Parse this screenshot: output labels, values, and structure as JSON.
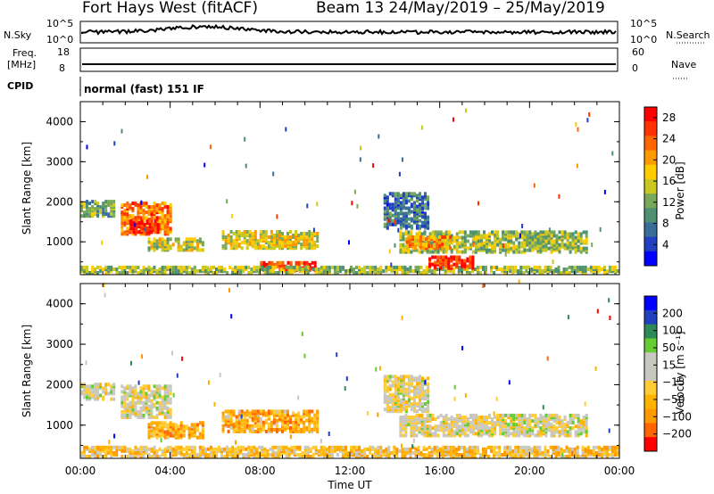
{
  "header": {
    "radar_title": "Fort Hays West (fitACF)",
    "beam_info": "Beam 13 24/May/2019 – 25/May/2019"
  },
  "strip_nsky": {
    "left_label": "N.Sky",
    "right_label": "N.Search",
    "left_ticks": [
      "10^5",
      "10^0"
    ],
    "right_ticks": [
      "10^5",
      "10^0"
    ]
  },
  "strip_freq": {
    "left_label_line1": "Freq.",
    "left_label_line2": "[MHz]",
    "right_label": "Nave",
    "left_ticks": [
      "18",
      "8"
    ],
    "right_ticks": [
      "60",
      "0"
    ]
  },
  "strip_cpid": {
    "label": "CPID",
    "value": "normal (fast) 151 IF"
  },
  "colors": {
    "power": [
      "#0000ff",
      "#2040c0",
      "#3a6e9a",
      "#4f9070",
      "#7aa85a",
      "#c8c820",
      "#ffcc00",
      "#ff9900",
      "#ff6600",
      "#ff3300",
      "#ff0000"
    ],
    "velocity": [
      "#ff0000",
      "#ff6600",
      "#ff9900",
      "#ffb300",
      "#ffcc33",
      "#c8c8c0",
      "#c8c8c0",
      "#66cc33",
      "#2e8b57",
      "#2040c0",
      "#0000ff"
    ]
  },
  "chart_data": [
    {
      "type": "heatmap",
      "name": "power_panel",
      "ylabel": "Slant Range [km]",
      "yticks": [
        "1000",
        "2000",
        "3000",
        "4000"
      ],
      "ylim": [
        180,
        4500
      ],
      "xticks": [
        "00:00",
        "04:00",
        "08:00",
        "12:00",
        "16:00",
        "20:00",
        "00:00"
      ],
      "colorbar": {
        "label": "Power [dB]",
        "ticks": [
          "4",
          "8",
          "12",
          "16",
          "20",
          "24",
          "28"
        ],
        "range": [
          0,
          30
        ]
      },
      "regions": [
        {
          "t0": 0.0,
          "t1": 1.5,
          "r0": 1600,
          "r1": 2000,
          "level": 0.4
        },
        {
          "t0": 1.8,
          "t1": 4.0,
          "r0": 1150,
          "r1": 1950,
          "level": 0.75
        },
        {
          "t0": 2.2,
          "t1": 3.5,
          "r0": 1200,
          "r1": 1500,
          "level": 0.95
        },
        {
          "t0": 3.0,
          "t1": 5.5,
          "r0": 750,
          "r1": 1050,
          "level": 0.5
        },
        {
          "t0": 6.3,
          "t1": 10.5,
          "r0": 800,
          "r1": 1250,
          "level": 0.55
        },
        {
          "t0": 8.0,
          "t1": 10.5,
          "r0": 250,
          "r1": 450,
          "level": 0.9
        },
        {
          "t0": 0.0,
          "t1": 24.0,
          "r0": 180,
          "r1": 350,
          "level": 0.45
        },
        {
          "t0": 14.2,
          "t1": 22.5,
          "r0": 700,
          "r1": 1200,
          "level": 0.45
        },
        {
          "t0": 14.5,
          "t1": 16.5,
          "r0": 800,
          "r1": 1100,
          "level": 0.7
        },
        {
          "t0": 15.5,
          "t1": 17.5,
          "r0": 300,
          "r1": 600,
          "level": 0.9
        },
        {
          "t0": 13.5,
          "t1": 15.5,
          "r0": 1300,
          "r1": 2200,
          "level": 0.25
        }
      ]
    },
    {
      "type": "heatmap",
      "name": "velocity_panel",
      "ylabel": "Slant Range [km]",
      "yticks": [
        "1000",
        "2000",
        "3000",
        "4000"
      ],
      "ylim": [
        180,
        4500
      ],
      "xticks": [
        "00:00",
        "04:00",
        "08:00",
        "12:00",
        "16:00",
        "20:00",
        "00:00"
      ],
      "xlabel": "Time UT",
      "colorbar": {
        "label": "Velocity [m s⁻¹]",
        "ticks": [
          "200",
          "100",
          "50",
          "15",
          "−15",
          "−50",
          "−100",
          "−200"
        ],
        "range": [
          -250,
          250
        ]
      },
      "regions": [
        {
          "t0": 0.0,
          "t1": 1.5,
          "r0": 1600,
          "r1": 2000,
          "level": 0.5
        },
        {
          "t0": 1.8,
          "t1": 4.0,
          "r0": 1150,
          "r1": 1950,
          "level": 0.5
        },
        {
          "t0": 3.0,
          "t1": 5.5,
          "r0": 650,
          "r1": 1050,
          "level": 0.3
        },
        {
          "t0": 6.3,
          "t1": 10.5,
          "r0": 800,
          "r1": 1300,
          "level": 0.3
        },
        {
          "t0": 0.0,
          "t1": 24.0,
          "r0": 180,
          "r1": 450,
          "level": 0.38
        },
        {
          "t0": 14.2,
          "t1": 22.5,
          "r0": 700,
          "r1": 1200,
          "level": 0.5
        },
        {
          "t0": 13.5,
          "t1": 15.5,
          "r0": 1300,
          "r1": 2200,
          "level": 0.5
        }
      ]
    }
  ],
  "xlabel": "Time UT"
}
